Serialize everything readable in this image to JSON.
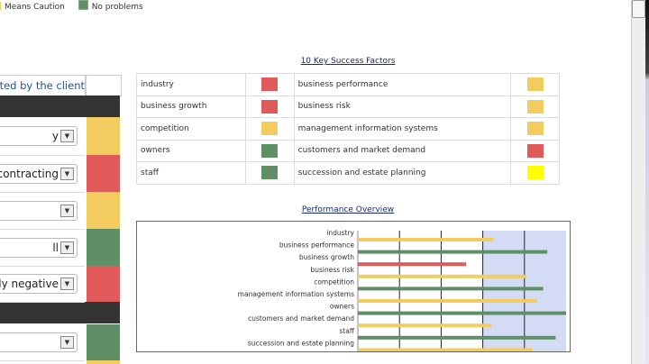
{
  "legend": [
    {
      "label": "Means Caution",
      "color": "#f2cc5e"
    },
    {
      "label": "No problems",
      "color": "#5f8f66"
    }
  ],
  "colors": {
    "red": "#e05a5a",
    "yellow": "#f2cc5e",
    "green": "#5f8f66",
    "bright_yellow": "#ffff00",
    "dark": "#333333"
  },
  "left_table": {
    "header": "lected by the client",
    "rows": [
      {
        "value": "y",
        "status": "yellow"
      },
      {
        "value": "contracting",
        "status": "red"
      },
      {
        "value": "",
        "status": "yellow"
      },
      {
        "value": "ll",
        "status": "green"
      },
      {
        "value": "ntly negative",
        "status": "red"
      },
      {
        "value": "",
        "status": "green"
      }
    ]
  },
  "ksf": {
    "title": "10 Key Success Factors",
    "rows": [
      [
        {
          "label": "industry",
          "status": "red"
        },
        {
          "label": "business performance",
          "status": "yellow"
        }
      ],
      [
        {
          "label": "business growth",
          "status": "red"
        },
        {
          "label": "business risk",
          "status": "yellow"
        }
      ],
      [
        {
          "label": "competition",
          "status": "yellow"
        },
        {
          "label": "management information systems",
          "status": "yellow"
        }
      ],
      [
        {
          "label": "owners",
          "status": "green"
        },
        {
          "label": "customers and market demand",
          "status": "red"
        }
      ],
      [
        {
          "label": "staff",
          "status": "green"
        },
        {
          "label": "succession and estate planning",
          "status": "bright_yellow"
        }
      ]
    ]
  },
  "chart_data": {
    "type": "bar",
    "orientation": "horizontal",
    "title": "Performance Overview",
    "categories": [
      "industry",
      "business performance",
      "business growth",
      "business risk",
      "competition",
      "management information systems",
      "owners",
      "customers and market demand",
      "staff",
      "succession and estate planning"
    ],
    "values": [
      3.25,
      4.55,
      2.6,
      4.05,
      4.45,
      4.3,
      5.0,
      3.2,
      4.75,
      4.2
    ],
    "bar_colors": [
      "yellow",
      "green",
      "red",
      "yellow",
      "green",
      "yellow",
      "green",
      "yellow",
      "green",
      "yellow"
    ],
    "xlim": [
      0,
      5
    ],
    "grid": true,
    "background_band": "#d4dcf5"
  }
}
